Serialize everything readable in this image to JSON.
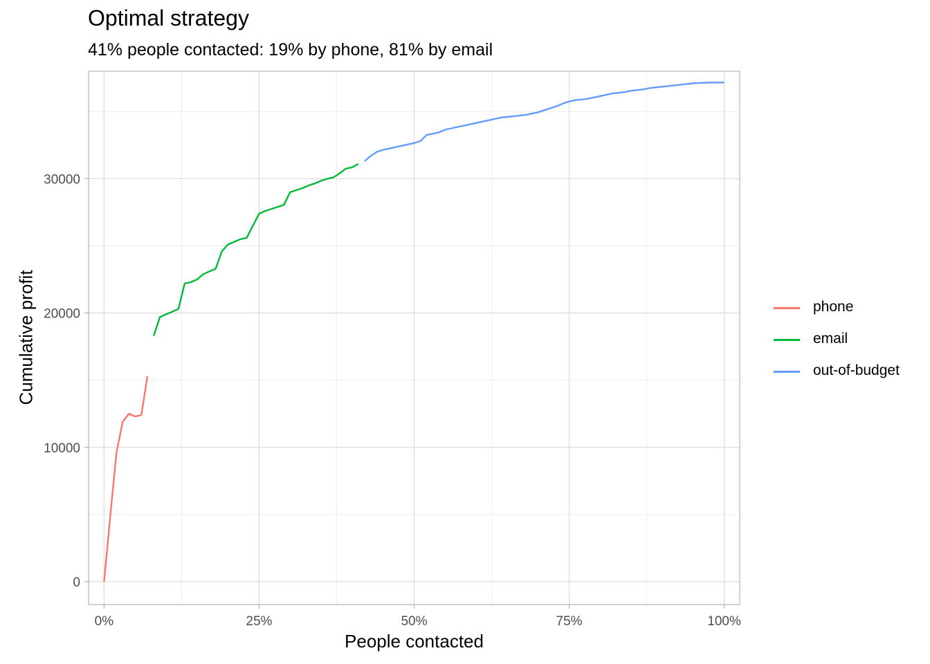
{
  "chart_data": {
    "type": "line",
    "title": "Optimal strategy",
    "subtitle": "41% people contacted: 19% by phone, 81% by email",
    "xlabel": "People contacted",
    "ylabel": "Cumulative profit",
    "xlim": [
      -0.025,
      1.025
    ],
    "ylim": [
      -1700,
      38000
    ],
    "x_ticks": [
      {
        "value": 0,
        "label": "0%"
      },
      {
        "value": 0.25,
        "label": "25%"
      },
      {
        "value": 0.5,
        "label": "50%"
      },
      {
        "value": 0.75,
        "label": "75%"
      },
      {
        "value": 1,
        "label": "100%"
      }
    ],
    "y_ticks": [
      {
        "value": 0,
        "label": "0"
      },
      {
        "value": 10000,
        "label": "10000"
      },
      {
        "value": 20000,
        "label": "20000"
      },
      {
        "value": 30000,
        "label": "30000"
      }
    ],
    "x_minor": [
      0.125,
      0.375,
      0.625,
      0.875
    ],
    "y_minor": [
      5000,
      15000,
      25000,
      35000
    ],
    "grid": true,
    "legend_position": "right",
    "series": [
      {
        "name": "phone",
        "color": "#F8766D",
        "points": [
          [
            0,
            0
          ],
          [
            0.01,
            4900
          ],
          [
            0.02,
            9600
          ],
          [
            0.03,
            11900
          ],
          [
            0.04,
            12500
          ],
          [
            0.05,
            12300
          ],
          [
            0.06,
            12400
          ],
          [
            0.07,
            15300
          ]
        ]
      },
      {
        "name": "email",
        "color": "#00BA38",
        "points": [
          [
            0.08,
            18300
          ],
          [
            0.09,
            19700
          ],
          [
            0.1,
            19900
          ],
          [
            0.11,
            20100
          ],
          [
            0.12,
            20300
          ],
          [
            0.13,
            22200
          ],
          [
            0.14,
            22300
          ],
          [
            0.15,
            22500
          ],
          [
            0.16,
            22900
          ],
          [
            0.17,
            23100
          ],
          [
            0.18,
            23300
          ],
          [
            0.19,
            24600
          ],
          [
            0.2,
            25100
          ],
          [
            0.21,
            25300
          ],
          [
            0.22,
            25500
          ],
          [
            0.23,
            25600
          ],
          [
            0.24,
            26500
          ],
          [
            0.25,
            27400
          ],
          [
            0.26,
            27600
          ],
          [
            0.27,
            27750
          ],
          [
            0.28,
            27900
          ],
          [
            0.29,
            28050
          ],
          [
            0.3,
            29000
          ],
          [
            0.31,
            29150
          ],
          [
            0.32,
            29300
          ],
          [
            0.33,
            29500
          ],
          [
            0.34,
            29650
          ],
          [
            0.35,
            29850
          ],
          [
            0.36,
            30000
          ],
          [
            0.37,
            30100
          ],
          [
            0.38,
            30400
          ],
          [
            0.39,
            30750
          ],
          [
            0.4,
            30850
          ],
          [
            0.41,
            31100
          ]
        ]
      },
      {
        "name": "out-of-budget",
        "color": "#619CFF",
        "points": [
          [
            0.42,
            31300
          ],
          [
            0.43,
            31700
          ],
          [
            0.44,
            32000
          ],
          [
            0.45,
            32150
          ],
          [
            0.46,
            32250
          ],
          [
            0.47,
            32350
          ],
          [
            0.48,
            32450
          ],
          [
            0.49,
            32550
          ],
          [
            0.5,
            32650
          ],
          [
            0.51,
            32800
          ],
          [
            0.52,
            33250
          ],
          [
            0.53,
            33350
          ],
          [
            0.54,
            33450
          ],
          [
            0.55,
            33650
          ],
          [
            0.56,
            33750
          ],
          [
            0.57,
            33850
          ],
          [
            0.58,
            33950
          ],
          [
            0.59,
            34050
          ],
          [
            0.6,
            34150
          ],
          [
            0.61,
            34250
          ],
          [
            0.62,
            34350
          ],
          [
            0.63,
            34450
          ],
          [
            0.64,
            34550
          ],
          [
            0.65,
            34600
          ],
          [
            0.66,
            34650
          ],
          [
            0.67,
            34700
          ],
          [
            0.68,
            34750
          ],
          [
            0.69,
            34850
          ],
          [
            0.7,
            34950
          ],
          [
            0.71,
            35100
          ],
          [
            0.72,
            35250
          ],
          [
            0.73,
            35400
          ],
          [
            0.74,
            35600
          ],
          [
            0.75,
            35750
          ],
          [
            0.76,
            35850
          ],
          [
            0.77,
            35900
          ],
          [
            0.78,
            35950
          ],
          [
            0.79,
            36050
          ],
          [
            0.8,
            36150
          ],
          [
            0.81,
            36250
          ],
          [
            0.82,
            36350
          ],
          [
            0.83,
            36400
          ],
          [
            0.84,
            36450
          ],
          [
            0.85,
            36550
          ],
          [
            0.86,
            36600
          ],
          [
            0.87,
            36650
          ],
          [
            0.88,
            36750
          ],
          [
            0.89,
            36800
          ],
          [
            0.9,
            36850
          ],
          [
            0.91,
            36900
          ],
          [
            0.92,
            36950
          ],
          [
            0.93,
            37000
          ],
          [
            0.94,
            37050
          ],
          [
            0.95,
            37100
          ],
          [
            0.96,
            37130
          ],
          [
            0.97,
            37150
          ],
          [
            0.98,
            37160
          ],
          [
            0.99,
            37160
          ],
          [
            1.0,
            37160
          ]
        ]
      }
    ]
  }
}
